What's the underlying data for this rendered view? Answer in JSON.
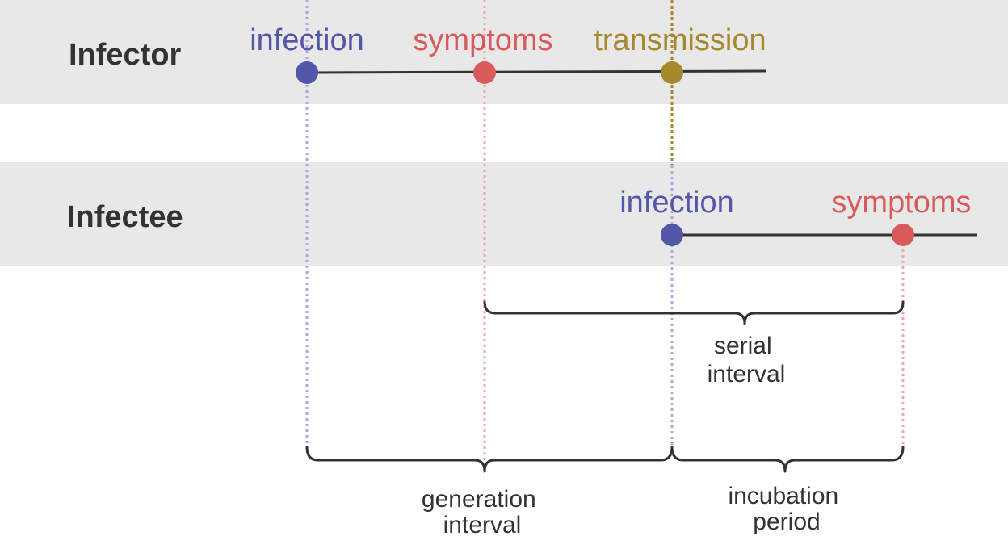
{
  "colors": {
    "infection": "#5257a8",
    "symptoms": "#d95a5a",
    "transmission": "#a6892c",
    "infection_guide": "#aaaae0",
    "symptoms_guide": "#f2a5a5",
    "band": "#e8e8e8",
    "text": "#333333"
  },
  "rows": {
    "infector": {
      "label": "Infector",
      "events": {
        "infection": "infection",
        "symptoms": "symptoms",
        "transmission": "transmission"
      }
    },
    "infectee": {
      "label": "Infectee",
      "events": {
        "infection": "infection",
        "symptoms": "symptoms"
      }
    }
  },
  "intervals": {
    "serial": {
      "line1": "serial",
      "line2": "interval"
    },
    "generation": {
      "line1": "generation",
      "line2": "interval"
    },
    "incubation": {
      "line1": "incubation",
      "line2": "period"
    }
  }
}
